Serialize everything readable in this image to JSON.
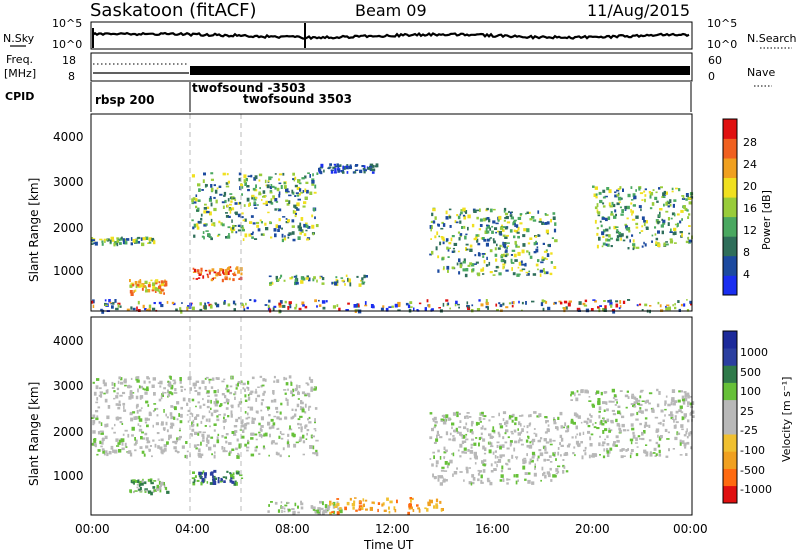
{
  "header": {
    "station": "Saskatoon (fitACF)",
    "beam": "Beam 09",
    "date": "11/Aug/2015"
  },
  "strips": {
    "nsky": {
      "label": "N.Sky",
      "ticks": [
        "10^5",
        "10^0"
      ]
    },
    "nsearch": {
      "label": "N.Search",
      "ticks": [
        "10^5",
        "10^0"
      ]
    },
    "freq": {
      "label_top": "Freq.",
      "label_bottom": "[MHz]",
      "ticks": [
        "18",
        "8"
      ]
    },
    "nave": {
      "label": "Nave",
      "ticks": [
        "60",
        "0"
      ]
    },
    "cpid": {
      "label": "CPID",
      "programs": [
        {
          "name": "rbsp 200",
          "start_hour": 0
        },
        {
          "name": "twofsound -3503",
          "start_hour": 4
        },
        {
          "name": "twofsound 3503",
          "start_hour": 6
        }
      ]
    }
  },
  "chart_data": [
    {
      "type": "heatmap",
      "name": "power",
      "ylabel": "Slant Range [km]",
      "ylim": [
        180,
        4600
      ],
      "yticks": [
        "1000",
        "2000",
        "3000",
        "4000"
      ],
      "xlim": [
        0,
        24
      ],
      "colorbar": {
        "label": "Power [dB]",
        "range": [
          0,
          32
        ],
        "ticks": [
          "4",
          "8",
          "12",
          "16",
          "20",
          "24",
          "28"
        ]
      },
      "features": [
        {
          "t": [
            0.0,
            2.5
          ],
          "range_km": [
            1700,
            1850
          ],
          "level": "medium"
        },
        {
          "t": [
            1.5,
            3.0
          ],
          "range_km": [
            600,
            900
          ],
          "level": "high"
        },
        {
          "t": [
            4.0,
            6.0
          ],
          "range_km": [
            900,
            1200
          ],
          "level": "very high"
        },
        {
          "t": [
            4.0,
            9.0
          ],
          "range_km": [
            1800,
            3300
          ],
          "level": "medium"
        },
        {
          "t": [
            7.0,
            11.0
          ],
          "range_km": [
            800,
            1000
          ],
          "level": "medium"
        },
        {
          "t": [
            9.0,
            11.5
          ],
          "range_km": [
            3300,
            3500
          ],
          "level": "low"
        },
        {
          "t": [
            13.5,
            18.5
          ],
          "range_km": [
            1000,
            2500
          ],
          "level": "medium"
        },
        {
          "t": [
            20.0,
            24.0
          ],
          "range_km": [
            1600,
            3000
          ],
          "level": "medium"
        },
        {
          "t": [
            0.0,
            24.0
          ],
          "range_km": [
            200,
            450
          ],
          "level": "mixed"
        }
      ]
    },
    {
      "type": "heatmap",
      "name": "velocity",
      "ylabel": "Slant Range [km]",
      "xlabel": "Time UT",
      "ylim": [
        180,
        4600
      ],
      "yticks": [
        "1000",
        "2000",
        "3000",
        "4000"
      ],
      "xlim": [
        0,
        24
      ],
      "xticks": [
        "00:00",
        "04:00",
        "08:00",
        "12:00",
        "16:00",
        "20:00",
        "00:00"
      ],
      "colorbar": {
        "label": "Velocity [m s⁻¹]",
        "ticks": [
          "1000",
          "500",
          "100",
          "25",
          "-25",
          "-100",
          "-500",
          "-1000"
        ]
      },
      "features": [
        {
          "t": [
            0.0,
            9.0
          ],
          "range_km": [
            1500,
            3300
          ],
          "velocity_class": "-25 to 25"
        },
        {
          "t": [
            1.5,
            3.0
          ],
          "range_km": [
            700,
            1000
          ],
          "velocity_class": "25 to 500"
        },
        {
          "t": [
            4.0,
            6.0
          ],
          "range_km": [
            900,
            1200
          ],
          "velocity_class": "100 to 500"
        },
        {
          "t": [
            7.0,
            10.0
          ],
          "range_km": [
            250,
            500
          ],
          "velocity_class": "25 to 100"
        },
        {
          "t": [
            9.5,
            14.0
          ],
          "range_km": [
            250,
            600
          ],
          "velocity_class": "-100 to -500"
        },
        {
          "t": [
            13.5,
            19.0
          ],
          "range_km": [
            900,
            2500
          ],
          "velocity_class": "-25 to 25"
        },
        {
          "t": [
            19.0,
            24.0
          ],
          "range_km": [
            1500,
            3000
          ],
          "velocity_class": "-25 to 25"
        }
      ]
    }
  ],
  "colors": {
    "power_scale": [
      "#1a2ef0",
      "#1c4a9f",
      "#2f6e5a",
      "#4aa860",
      "#98cc3a",
      "#f0e020",
      "#f0a020",
      "#f06020",
      "#e01010"
    ],
    "velocity_scale": [
      "#e01010",
      "#ff6a10",
      "#f0a020",
      "#f0c030",
      "#b8b8b8",
      "#b8b8b8",
      "#66c038",
      "#2f7a4a",
      "#2b3fa0",
      "#1c2a9a"
    ]
  }
}
